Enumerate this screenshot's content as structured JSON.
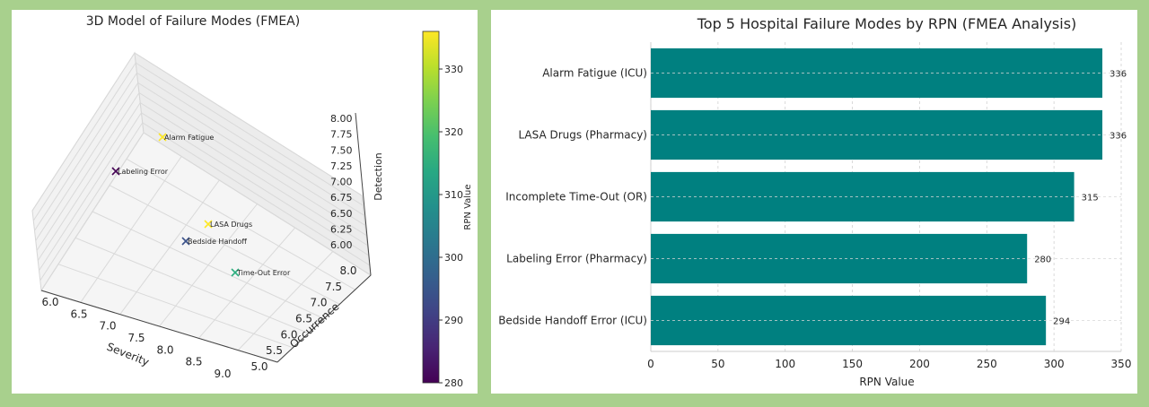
{
  "chart_data": [
    {
      "type": "scatter3d",
      "title": "3D Model of Failure Modes (FMEA)",
      "xlabel": "Severity",
      "ylabel": "Occurrence",
      "zlabel": "Detection",
      "x_ticks": [
        "6.0",
        "6.5",
        "7.0",
        "7.5",
        "8.0",
        "8.5",
        "9.0"
      ],
      "y_ticks": [
        "5.0",
        "5.5",
        "6.0",
        "6.5",
        "7.0",
        "7.5",
        "8.0"
      ],
      "z_ticks": [
        "6.00",
        "6.25",
        "6.50",
        "6.75",
        "7.00",
        "7.25",
        "7.50",
        "7.75",
        "8.00"
      ],
      "colorbar": {
        "label": "RPN Value",
        "range": [
          280,
          336
        ],
        "ticks": [
          "280",
          "290",
          "300",
          "310",
          "320",
          "330"
        ],
        "colormap": "viridis"
      },
      "points": [
        {
          "label": "Alarm Fatigue",
          "rpn": 336
        },
        {
          "label": "Labeling Error",
          "rpn": 280
        },
        {
          "label": "LASA Drugs",
          "rpn": 336
        },
        {
          "label": "Bedside Handoff",
          "rpn": 294
        },
        {
          "label": "Time-Out Error",
          "rpn": 315
        }
      ],
      "grid": true
    },
    {
      "type": "bar",
      "orientation": "horizontal",
      "title": "Top 5 Hospital Failure Modes by RPN (FMEA Analysis)",
      "categories": [
        "Alarm Fatigue (ICU)",
        "LASA Drugs (Pharmacy)",
        "Incomplete Time-Out (OR)",
        "Labeling Error (Pharmacy)",
        "Bedside Handoff Error (ICU)"
      ],
      "values": [
        336,
        336,
        315,
        280,
        294
      ],
      "value_labels": [
        "336",
        "336",
        "315",
        "280",
        "294"
      ],
      "xlabel": "RPN Value",
      "xlim": [
        0,
        350
      ],
      "x_ticks": [
        "0",
        "50",
        "100",
        "150",
        "200",
        "250",
        "300",
        "350"
      ],
      "color": "#008080",
      "grid": true
    }
  ]
}
